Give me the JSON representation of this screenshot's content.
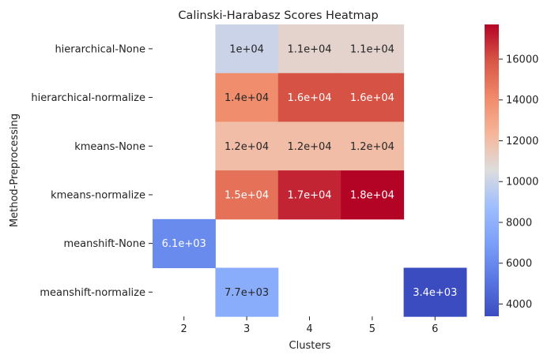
{
  "chart_data": {
    "type": "heatmap",
    "title": "Calinski-Harabasz Scores Heatmap",
    "xlabel": "Clusters",
    "ylabel": "Method-Preprocessing",
    "x_categories": [
      "2",
      "3",
      "4",
      "5",
      "6"
    ],
    "y_categories": [
      "hierarchical-None",
      "hierarchical-normalize",
      "kmeans-None",
      "kmeans-normalize",
      "meanshift-None",
      "meanshift-normalize"
    ],
    "values": [
      [
        null,
        10000,
        11000,
        11000,
        null
      ],
      [
        null,
        14000,
        16000,
        16000,
        null
      ],
      [
        null,
        12000,
        12000,
        12000,
        null
      ],
      [
        null,
        15000,
        17000,
        18000,
        null
      ],
      [
        6100,
        null,
        null,
        null,
        null
      ],
      [
        null,
        7700,
        null,
        null,
        3400
      ]
    ],
    "annotations": [
      [
        null,
        "1e+04",
        "1.1e+04",
        "1.1e+04",
        null
      ],
      [
        null,
        "1.4e+04",
        "1.6e+04",
        "1.6e+04",
        null
      ],
      [
        null,
        "1.2e+04",
        "1.2e+04",
        "1.2e+04",
        null
      ],
      [
        null,
        "1.5e+04",
        "1.7e+04",
        "1.8e+04",
        null
      ],
      [
        "6.1e+03",
        null,
        null,
        null,
        null
      ],
      [
        null,
        "7.7e+03",
        null,
        null,
        "3.4e+03"
      ]
    ],
    "colormap": "coolwarm",
    "colorbar_range": [
      3400,
      17700
    ],
    "colorbar_ticks": [
      4000,
      6000,
      8000,
      10000,
      12000,
      14000,
      16000
    ],
    "colorbar_tick_labels": [
      "4000",
      "6000",
      "8000",
      "10000",
      "12000",
      "14000",
      "16000"
    ]
  }
}
